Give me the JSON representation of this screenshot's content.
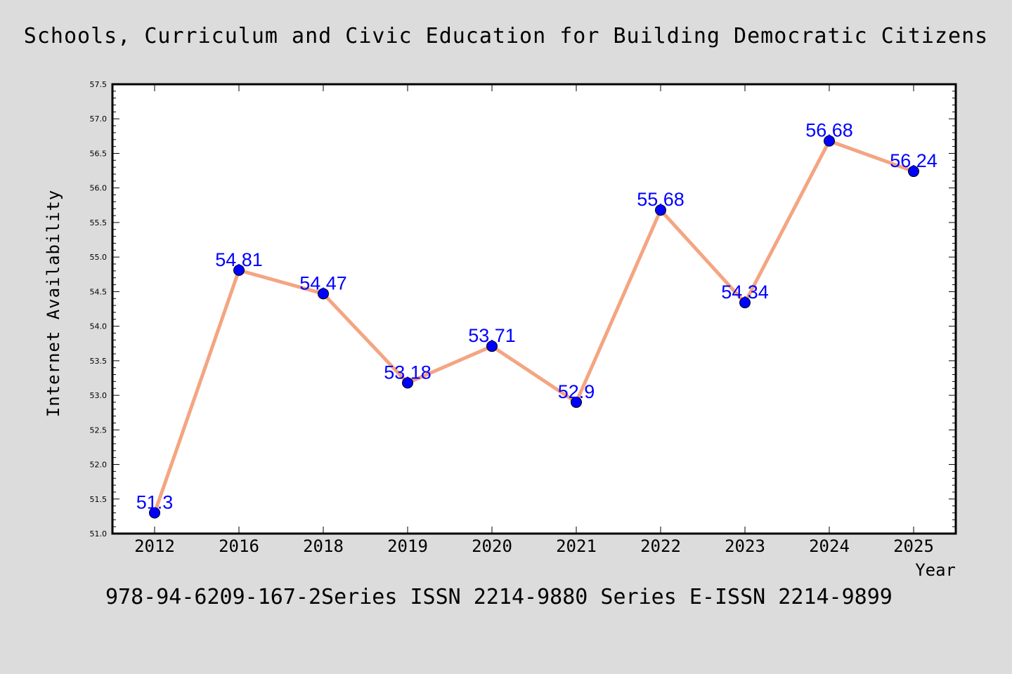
{
  "title": "Schools, Curriculum and Civic Education for Building Democratic Citizens",
  "footer": "978-94-6209-167-2Series ISSN 2214-9880 Series E-ISSN 2214-9899",
  "colors": {
    "background": "#dcdcdc",
    "plot_area": "#ffffff",
    "line": "#f4a582",
    "marker": "#0000ff",
    "data_label": "#0000ff"
  },
  "chart_data": {
    "type": "line",
    "title": "Schools, Curriculum and Civic Education for Building Democratic Citizens",
    "xlabel": "Year",
    "ylabel": "Internet Availability",
    "categories": [
      "2012",
      "2016",
      "2018",
      "2019",
      "2020",
      "2021",
      "2022",
      "2023",
      "2024",
      "2025"
    ],
    "series": [
      {
        "values": [
          51.3,
          54.81,
          54.47,
          53.18,
          53.71,
          52.9,
          55.68,
          54.34,
          56.68,
          56.24
        ],
        "labels": [
          "51.3",
          "54.81",
          "54.47",
          "53.18",
          "53.71",
          "52.9",
          "55.68",
          "54.34",
          "56.68",
          "56.24"
        ]
      }
    ],
    "ylim": [
      51.0,
      57.5
    ],
    "yticks": [
      "51.0",
      "51.5",
      "52.0",
      "52.5",
      "53.0",
      "53.5",
      "54.0",
      "54.5",
      "55.0",
      "55.5",
      "56.0",
      "56.5",
      "57.0",
      "57.5"
    ],
    "grid": false,
    "legend": "none"
  }
}
